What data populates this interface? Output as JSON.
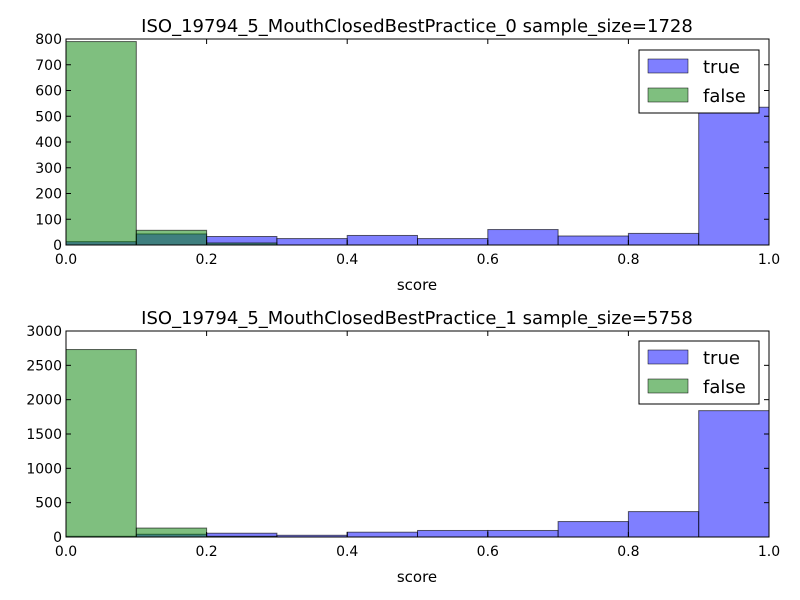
{
  "chart_data": [
    {
      "type": "bar",
      "title": "ISO_19794_5_MouthClosedBestPractice_0 sample_size=1728",
      "xlabel": "score",
      "ylabel": "",
      "xlim": [
        0.0,
        1.0
      ],
      "ylim": [
        0,
        800
      ],
      "x_ticks": [
        "0.0",
        "0.2",
        "0.4",
        "0.6",
        "0.8",
        "1.0"
      ],
      "y_ticks": [
        "0",
        "100",
        "200",
        "300",
        "400",
        "500",
        "600",
        "700",
        "800"
      ],
      "bin_edges": [
        0.0,
        0.1,
        0.2,
        0.3,
        0.4,
        0.5,
        0.6,
        0.7,
        0.8,
        0.9,
        1.0
      ],
      "legend_position": "top-right",
      "series": [
        {
          "name": "true",
          "color": "#0000ff",
          "opacity": 0.5,
          "values": [
            13,
            43,
            33,
            25,
            37,
            25,
            60,
            35,
            45,
            535
          ]
        },
        {
          "name": "false",
          "color": "#008000",
          "opacity": 0.5,
          "values": [
            790,
            57,
            8,
            0,
            0,
            0,
            0,
            0,
            0,
            0
          ]
        }
      ]
    },
    {
      "type": "bar",
      "title": "ISO_19794_5_MouthClosedBestPractice_1 sample_size=5758",
      "xlabel": "score",
      "ylabel": "",
      "xlim": [
        0.0,
        1.0
      ],
      "ylim": [
        0,
        3000
      ],
      "x_ticks": [
        "0.0",
        "0.2",
        "0.4",
        "0.6",
        "0.8",
        "1.0"
      ],
      "y_ticks": [
        "0",
        "500",
        "1000",
        "1500",
        "2000",
        "2500",
        "3000"
      ],
      "bin_edges": [
        0.0,
        0.1,
        0.2,
        0.3,
        0.4,
        0.5,
        0.6,
        0.7,
        0.8,
        0.9,
        1.0
      ],
      "legend_position": "top-right",
      "series": [
        {
          "name": "true",
          "color": "#0000ff",
          "opacity": 0.5,
          "values": [
            10,
            40,
            55,
            25,
            70,
            95,
            95,
            225,
            370,
            1840
          ]
        },
        {
          "name": "false",
          "color": "#008000",
          "opacity": 0.5,
          "values": [
            2730,
            130,
            10,
            0,
            0,
            0,
            0,
            0,
            0,
            0
          ]
        }
      ]
    }
  ]
}
